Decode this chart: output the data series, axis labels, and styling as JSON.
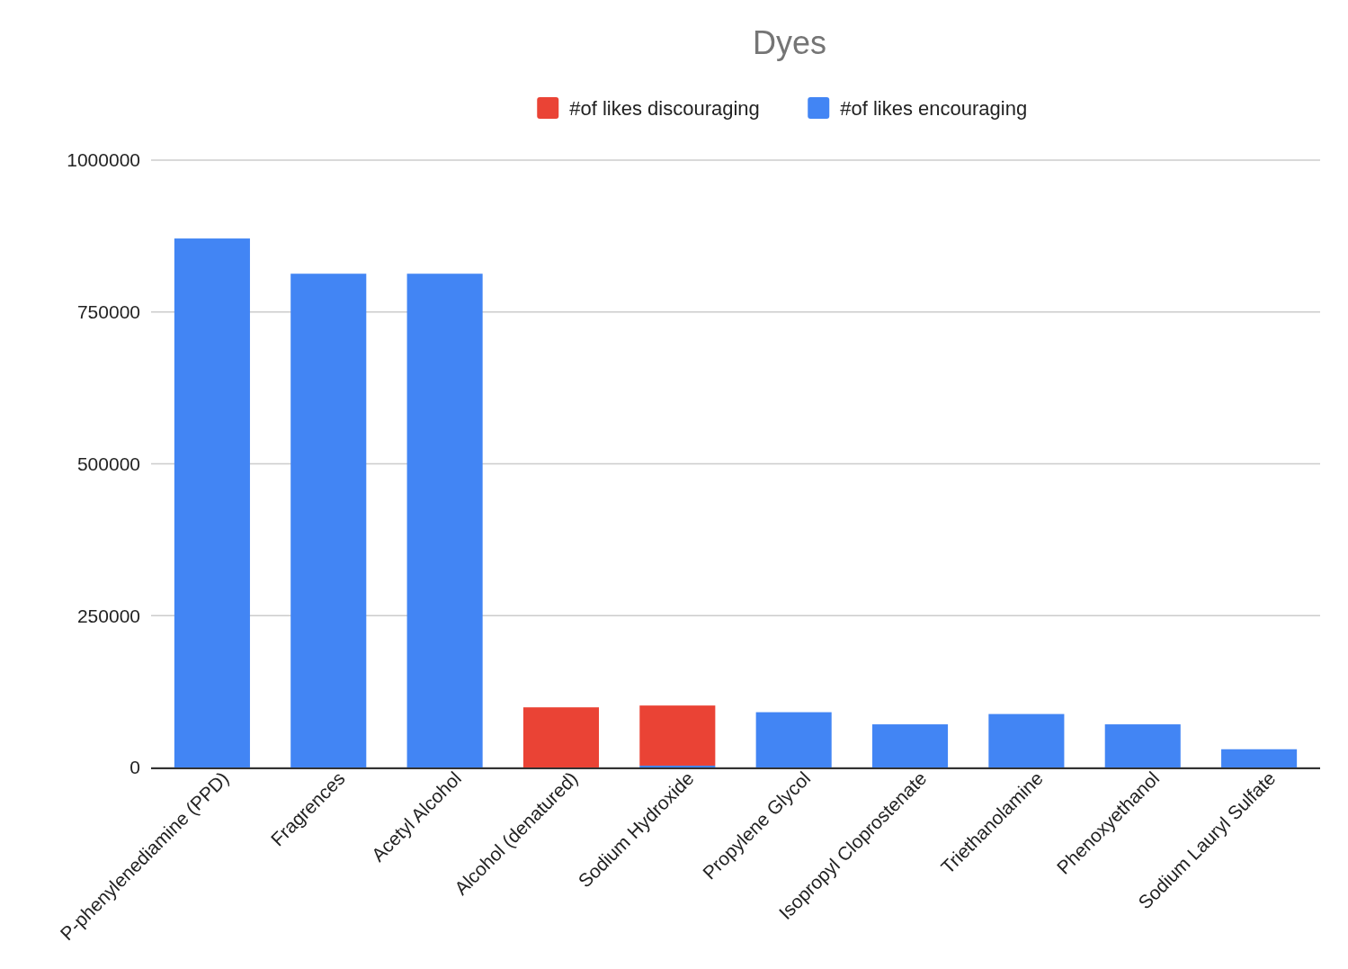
{
  "chart_data": {
    "type": "bar",
    "title": "Dyes",
    "stacked": true,
    "legend": "top",
    "grid": "y",
    "categories": [
      "P-phenylenediamine (PPD)",
      "Fragrences",
      "Acetyl Alcohol",
      "Alcohol (denatured)",
      "Sodium Hydroxide",
      "Propylene Glycol",
      "Isopropyl Cloprostenate",
      "Triethanolamine",
      "Phenoxyethanol",
      "Sodium Lauryl Sulfate"
    ],
    "series": [
      {
        "name": "#of likes encouraging",
        "color": "#4285f4",
        "values": [
          871000,
          813000,
          813000,
          0,
          3000,
          91000,
          71000,
          88000,
          71000,
          30000
        ]
      },
      {
        "name": "#of likes discouraging",
        "color": "#ea4335",
        "values": [
          0,
          0,
          0,
          99000,
          99000,
          0,
          0,
          0,
          0,
          0
        ]
      }
    ],
    "ylim": [
      0,
      1000000
    ],
    "yticks": [
      0,
      250000,
      500000,
      750000,
      1000000
    ]
  }
}
